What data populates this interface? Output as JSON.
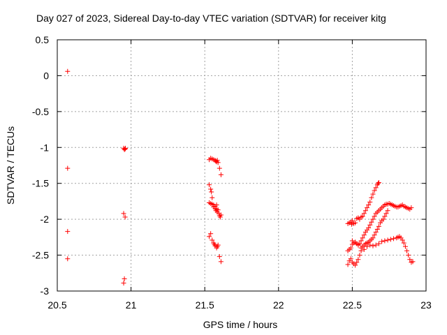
{
  "chart_data": {
    "type": "scatter",
    "title": "Day 027 of 2023, Sidereal Day-to-day VTEC variation (SDTVAR) for receiver kitg",
    "xlabel": "GPS time / hours",
    "ylabel": "SDTVAR / TECUs",
    "xlim": [
      20.5,
      23
    ],
    "ylim": [
      -3,
      0.5
    ],
    "xticks": [
      20.5,
      21,
      21.5,
      22,
      22.5,
      23
    ],
    "xtick_labels": [
      "20.5",
      "21",
      "21.5",
      "22",
      "22.5",
      "23"
    ],
    "yticks": [
      0.5,
      0,
      -0.5,
      -1,
      -1.5,
      -2,
      -2.5,
      -3
    ],
    "ytick_labels": [
      "0.5",
      "0",
      "-0.5",
      "-1",
      "-1.5",
      "-2",
      "-2.5",
      "-3"
    ],
    "grid": true,
    "marker": "+",
    "color": "#ff0000",
    "series": [
      {
        "name": "sdtvar",
        "points": [
          [
            20.57,
            0.06
          ],
          [
            20.57,
            -1.29
          ],
          [
            20.57,
            -2.17
          ],
          [
            20.57,
            -2.55
          ],
          [
            20.95,
            -1.01
          ],
          [
            20.955,
            -1.03
          ],
          [
            20.96,
            -1.02
          ],
          [
            20.962,
            -1.01
          ],
          [
            20.95,
            -1.92
          ],
          [
            20.96,
            -1.97
          ],
          [
            20.955,
            -2.83
          ],
          [
            20.95,
            -2.89
          ],
          [
            21.53,
            -1.17
          ],
          [
            21.54,
            -1.15
          ],
          [
            21.55,
            -1.16
          ],
          [
            21.56,
            -1.17
          ],
          [
            21.57,
            -1.18
          ],
          [
            21.575,
            -1.19
          ],
          [
            21.58,
            -1.2
          ],
          [
            21.585,
            -1.18
          ],
          [
            21.59,
            -1.21
          ],
          [
            21.6,
            -1.29
          ],
          [
            21.61,
            -1.38
          ],
          [
            21.53,
            -1.52
          ],
          [
            21.54,
            -1.58
          ],
          [
            21.545,
            -1.62
          ],
          [
            21.55,
            -1.7
          ],
          [
            21.53,
            -1.77
          ],
          [
            21.54,
            -1.78
          ],
          [
            21.55,
            -1.79
          ],
          [
            21.56,
            -1.8
          ],
          [
            21.57,
            -1.85
          ],
          [
            21.575,
            -1.88
          ],
          [
            21.58,
            -1.86
          ],
          [
            21.585,
            -1.9
          ],
          [
            21.59,
            -1.87
          ],
          [
            21.595,
            -1.92
          ],
          [
            21.6,
            -1.95
          ],
          [
            21.605,
            -1.97
          ],
          [
            21.61,
            -1.94
          ],
          [
            21.56,
            -1.83
          ],
          [
            21.57,
            -1.82
          ],
          [
            21.58,
            -1.8
          ],
          [
            21.53,
            -2.24
          ],
          [
            21.54,
            -2.2
          ],
          [
            21.55,
            -2.29
          ],
          [
            21.56,
            -2.33
          ],
          [
            21.565,
            -2.35
          ],
          [
            21.57,
            -2.37
          ],
          [
            21.58,
            -2.4
          ],
          [
            21.585,
            -2.38
          ],
          [
            21.59,
            -2.36
          ],
          [
            21.6,
            -2.52
          ],
          [
            21.61,
            -2.59
          ],
          [
            22.47,
            -2.06
          ],
          [
            22.48,
            -2.05
          ],
          [
            22.49,
            -2.04
          ],
          [
            22.495,
            -2.07
          ],
          [
            22.5,
            -2.02
          ],
          [
            22.51,
            -2.06
          ],
          [
            22.52,
            -2.05
          ],
          [
            22.53,
            -1.99
          ],
          [
            22.54,
            -1.98
          ],
          [
            22.55,
            -2.0
          ],
          [
            22.56,
            -1.97
          ],
          [
            22.57,
            -1.96
          ],
          [
            22.58,
            -1.92
          ],
          [
            22.59,
            -1.88
          ],
          [
            22.6,
            -1.84
          ],
          [
            22.61,
            -1.8
          ],
          [
            22.62,
            -1.76
          ],
          [
            22.63,
            -1.7
          ],
          [
            22.64,
            -1.65
          ],
          [
            22.65,
            -1.6
          ],
          [
            22.66,
            -1.56
          ],
          [
            22.67,
            -1.52
          ],
          [
            22.675,
            -1.5
          ],
          [
            22.68,
            -1.49
          ],
          [
            22.47,
            -2.44
          ],
          [
            22.48,
            -2.42
          ],
          [
            22.49,
            -2.4
          ],
          [
            22.5,
            -2.35
          ],
          [
            22.51,
            -2.33
          ],
          [
            22.52,
            -2.32
          ],
          [
            22.53,
            -2.34
          ],
          [
            22.54,
            -2.36
          ],
          [
            22.55,
            -2.34
          ],
          [
            22.56,
            -2.3
          ],
          [
            22.57,
            -2.26
          ],
          [
            22.58,
            -2.22
          ],
          [
            22.59,
            -2.18
          ],
          [
            22.6,
            -2.15
          ],
          [
            22.61,
            -2.12
          ],
          [
            22.62,
            -2.08
          ],
          [
            22.63,
            -2.04
          ],
          [
            22.64,
            -2.0
          ],
          [
            22.65,
            -1.96
          ],
          [
            22.66,
            -1.92
          ],
          [
            22.67,
            -1.9
          ],
          [
            22.68,
            -1.88
          ],
          [
            22.69,
            -1.86
          ],
          [
            22.7,
            -1.84
          ],
          [
            22.71,
            -1.82
          ],
          [
            22.72,
            -1.8
          ],
          [
            22.73,
            -1.79
          ],
          [
            22.74,
            -1.79
          ],
          [
            22.75,
            -1.78
          ],
          [
            22.76,
            -1.79
          ],
          [
            22.77,
            -1.8
          ],
          [
            22.78,
            -1.81
          ],
          [
            22.79,
            -1.82
          ],
          [
            22.8,
            -1.83
          ],
          [
            22.81,
            -1.83
          ],
          [
            22.82,
            -1.82
          ],
          [
            22.83,
            -1.81
          ],
          [
            22.84,
            -1.8
          ],
          [
            22.85,
            -1.82
          ],
          [
            22.86,
            -1.83
          ],
          [
            22.87,
            -1.84
          ],
          [
            22.88,
            -1.85
          ],
          [
            22.89,
            -1.86
          ],
          [
            22.9,
            -1.84
          ],
          [
            22.47,
            -2.63
          ],
          [
            22.48,
            -2.58
          ],
          [
            22.49,
            -2.55
          ],
          [
            22.5,
            -2.6
          ],
          [
            22.51,
            -2.62
          ],
          [
            22.52,
            -2.64
          ],
          [
            22.53,
            -2.6
          ],
          [
            22.54,
            -2.56
          ],
          [
            22.55,
            -2.5
          ],
          [
            22.56,
            -2.44
          ],
          [
            22.57,
            -2.38
          ],
          [
            22.58,
            -2.36
          ],
          [
            22.59,
            -2.34
          ],
          [
            22.6,
            -2.33
          ],
          [
            22.61,
            -2.32
          ],
          [
            22.62,
            -2.3
          ],
          [
            22.63,
            -2.28
          ],
          [
            22.64,
            -2.26
          ],
          [
            22.65,
            -2.22
          ],
          [
            22.66,
            -2.18
          ],
          [
            22.67,
            -2.14
          ],
          [
            22.68,
            -2.1
          ],
          [
            22.69,
            -2.05
          ],
          [
            22.7,
            -2.02
          ],
          [
            22.71,
            -2.0
          ],
          [
            22.72,
            -1.96
          ],
          [
            22.73,
            -1.92
          ],
          [
            22.74,
            -1.88
          ],
          [
            22.5,
            -2.3
          ],
          [
            22.52,
            -2.32
          ],
          [
            22.54,
            -2.35
          ],
          [
            22.56,
            -2.4
          ],
          [
            22.58,
            -2.42
          ],
          [
            22.6,
            -2.38
          ],
          [
            22.62,
            -2.36
          ],
          [
            22.64,
            -2.37
          ],
          [
            22.66,
            -2.36
          ],
          [
            22.68,
            -2.34
          ],
          [
            22.7,
            -2.31
          ],
          [
            22.72,
            -2.3
          ],
          [
            22.74,
            -2.29
          ],
          [
            22.76,
            -2.28
          ],
          [
            22.78,
            -2.27
          ],
          [
            22.8,
            -2.26
          ],
          [
            22.81,
            -2.25
          ],
          [
            22.82,
            -2.24
          ],
          [
            22.83,
            -2.26
          ],
          [
            22.84,
            -2.29
          ],
          [
            22.85,
            -2.33
          ],
          [
            22.86,
            -2.38
          ],
          [
            22.87,
            -2.44
          ],
          [
            22.88,
            -2.5
          ],
          [
            22.89,
            -2.56
          ],
          [
            22.9,
            -2.6
          ],
          [
            22.91,
            -2.59
          ]
        ]
      }
    ]
  }
}
